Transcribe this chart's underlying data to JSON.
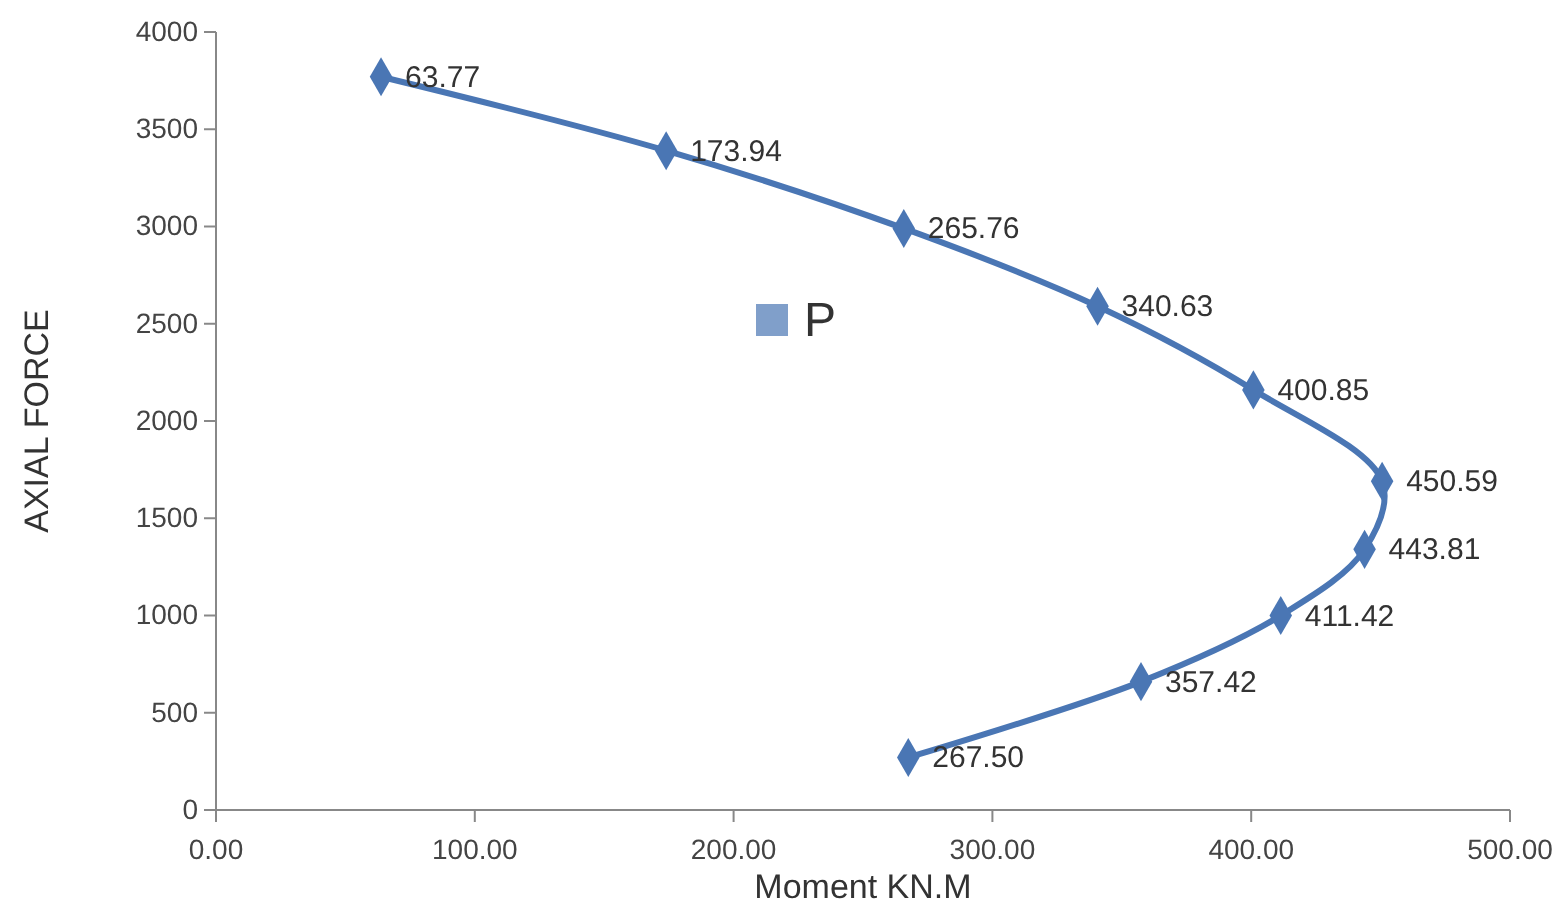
{
  "chart_data": {
    "type": "line",
    "xlabel": "Moment KN.M",
    "ylabel": "AXIAL FORCE",
    "x": [
      63.77,
      173.94,
      265.76,
      340.63,
      400.85,
      450.59,
      443.81,
      411.42,
      357.42,
      267.5
    ],
    "series": [
      {
        "name": "P",
        "color": "#4a76b4",
        "values": [
          3770,
          3390,
          2990,
          2590,
          2160,
          1690,
          1340,
          1000,
          660,
          270
        ]
      }
    ],
    "annotations": [
      {
        "text": "63.77",
        "x": 63.77,
        "y": 3770
      },
      {
        "text": "173.94",
        "x": 173.94,
        "y": 3390
      },
      {
        "text": "265.76",
        "x": 265.76,
        "y": 2990
      },
      {
        "text": "340.63",
        "x": 340.63,
        "y": 2590
      },
      {
        "text": "400.85",
        "x": 400.85,
        "y": 2160
      },
      {
        "text": "450.59",
        "x": 450.59,
        "y": 1690
      },
      {
        "text": "443.81",
        "x": 443.81,
        "y": 1340
      },
      {
        "text": "411.42",
        "x": 411.42,
        "y": 1000
      },
      {
        "text": "357.42",
        "x": 357.42,
        "y": 660
      },
      {
        "text": "267.50",
        "x": 267.5,
        "y": 270
      }
    ],
    "xlim": [
      0,
      500
    ],
    "xticks": [
      {
        "value": 0,
        "label": "0.00"
      },
      {
        "value": 100,
        "label": "100.00"
      },
      {
        "value": 200,
        "label": "200.00"
      },
      {
        "value": 300,
        "label": "300.00"
      },
      {
        "value": 400,
        "label": "400.00"
      },
      {
        "value": 500,
        "label": "500.00"
      }
    ],
    "ylim": [
      0,
      4000
    ],
    "yticks": [
      0,
      500,
      1000,
      1500,
      2000,
      2500,
      3000,
      3500,
      4000
    ],
    "marker": "diamond",
    "line_style": "solid",
    "legend": "center",
    "grid": false
  }
}
